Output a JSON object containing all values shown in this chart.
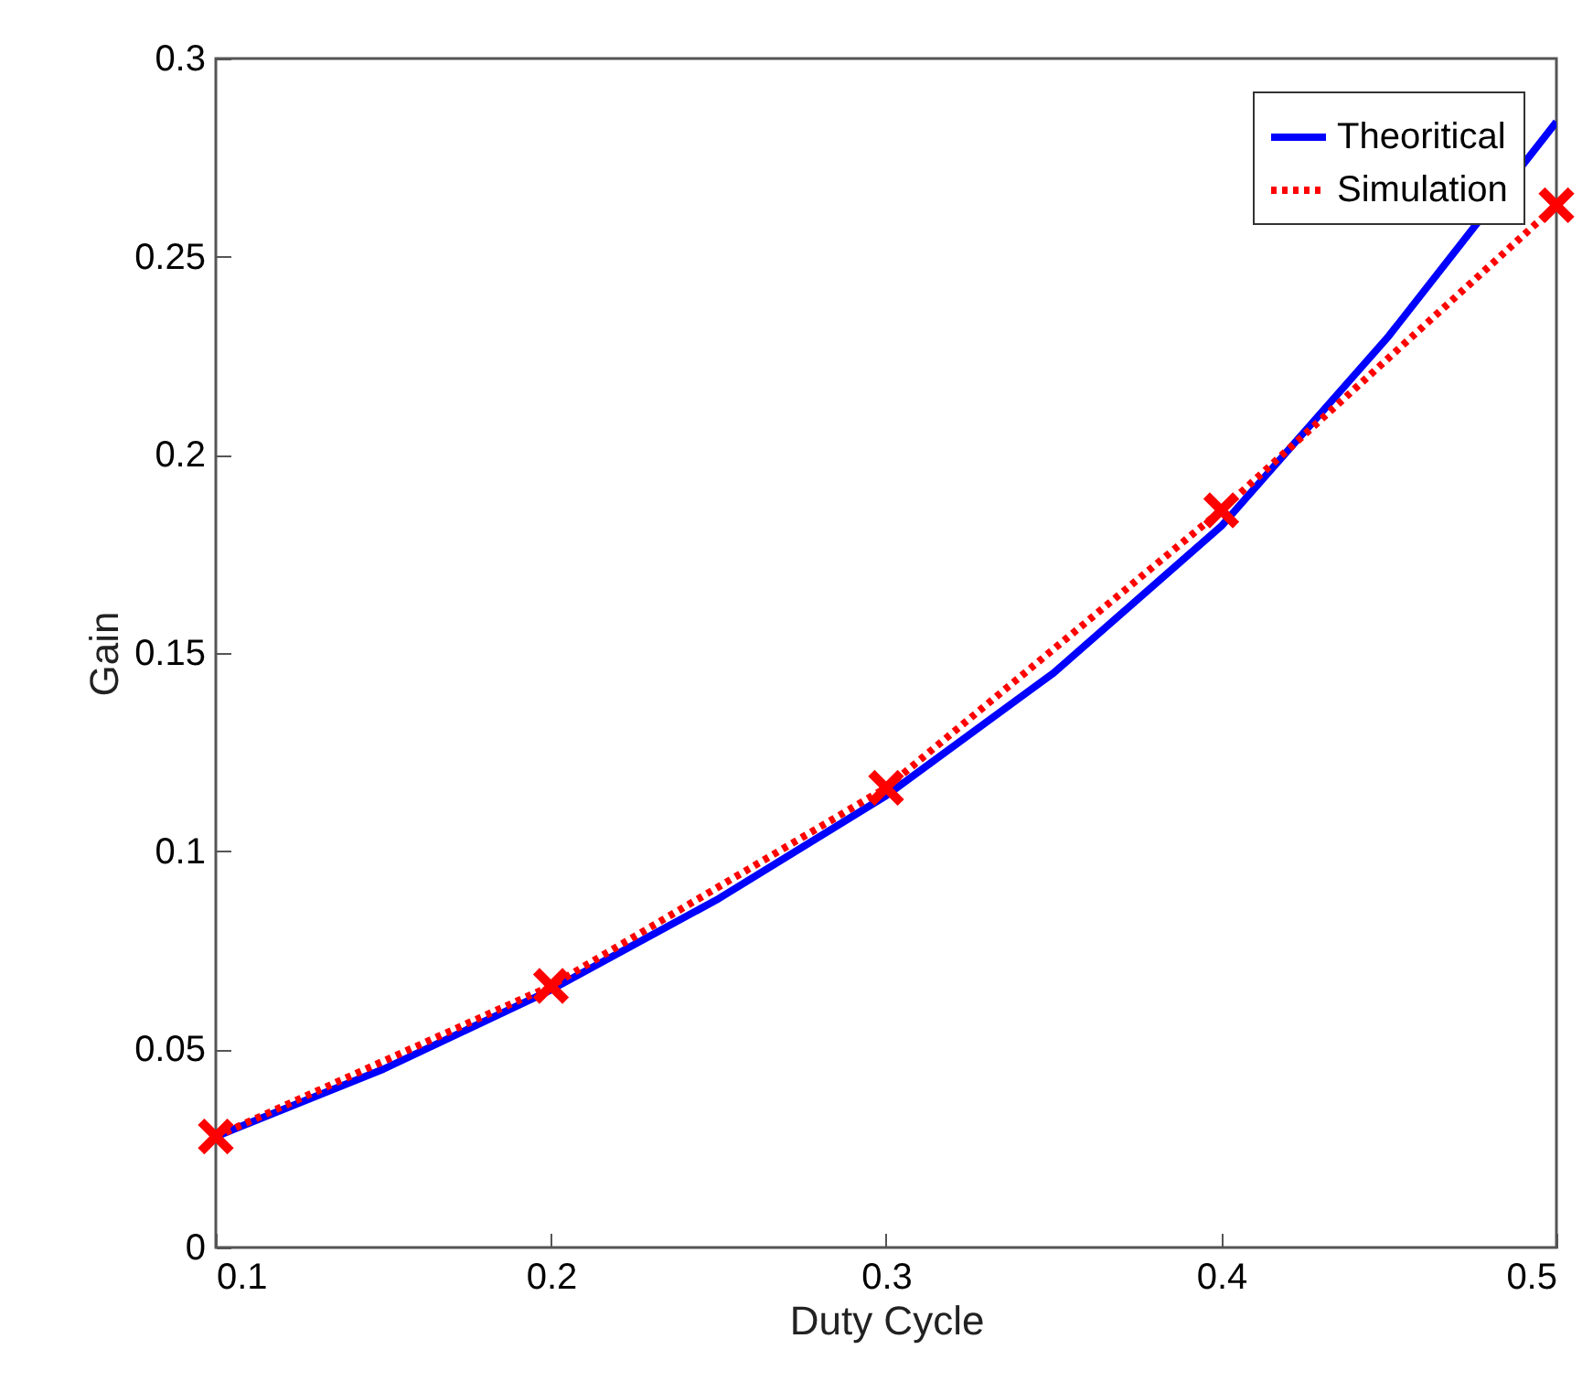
{
  "chart_data": {
    "type": "line",
    "xlabel": "Duty Cycle",
    "ylabel": "Gain",
    "xlim": [
      0.1,
      0.5
    ],
    "xticks": [
      0.1,
      0.2,
      0.3,
      0.4,
      0.5
    ],
    "ylim": [
      0,
      0.3
    ],
    "yticks": [
      0,
      0.05,
      0.1,
      0.15,
      0.2,
      0.25,
      0.3
    ],
    "grid": false,
    "legend": "top right",
    "series": [
      {
        "name": "Theoritical",
        "color": "#0000ff",
        "line_style": "solid",
        "marker": "none",
        "x": [
          0.1,
          0.15,
          0.2,
          0.25,
          0.3,
          0.35,
          0.4,
          0.45,
          0.5
        ],
        "values": [
          0.028,
          0.045,
          0.065,
          0.088,
          0.114,
          0.145,
          0.182,
          0.23,
          0.284
        ]
      },
      {
        "name": "Simulation",
        "color": "#ff0000",
        "line_style": "dotted",
        "marker": "cross",
        "x": [
          0.1,
          0.2,
          0.3,
          0.4,
          0.5
        ],
        "values": [
          0.028,
          0.066,
          0.116,
          0.186,
          0.263
        ]
      }
    ]
  }
}
